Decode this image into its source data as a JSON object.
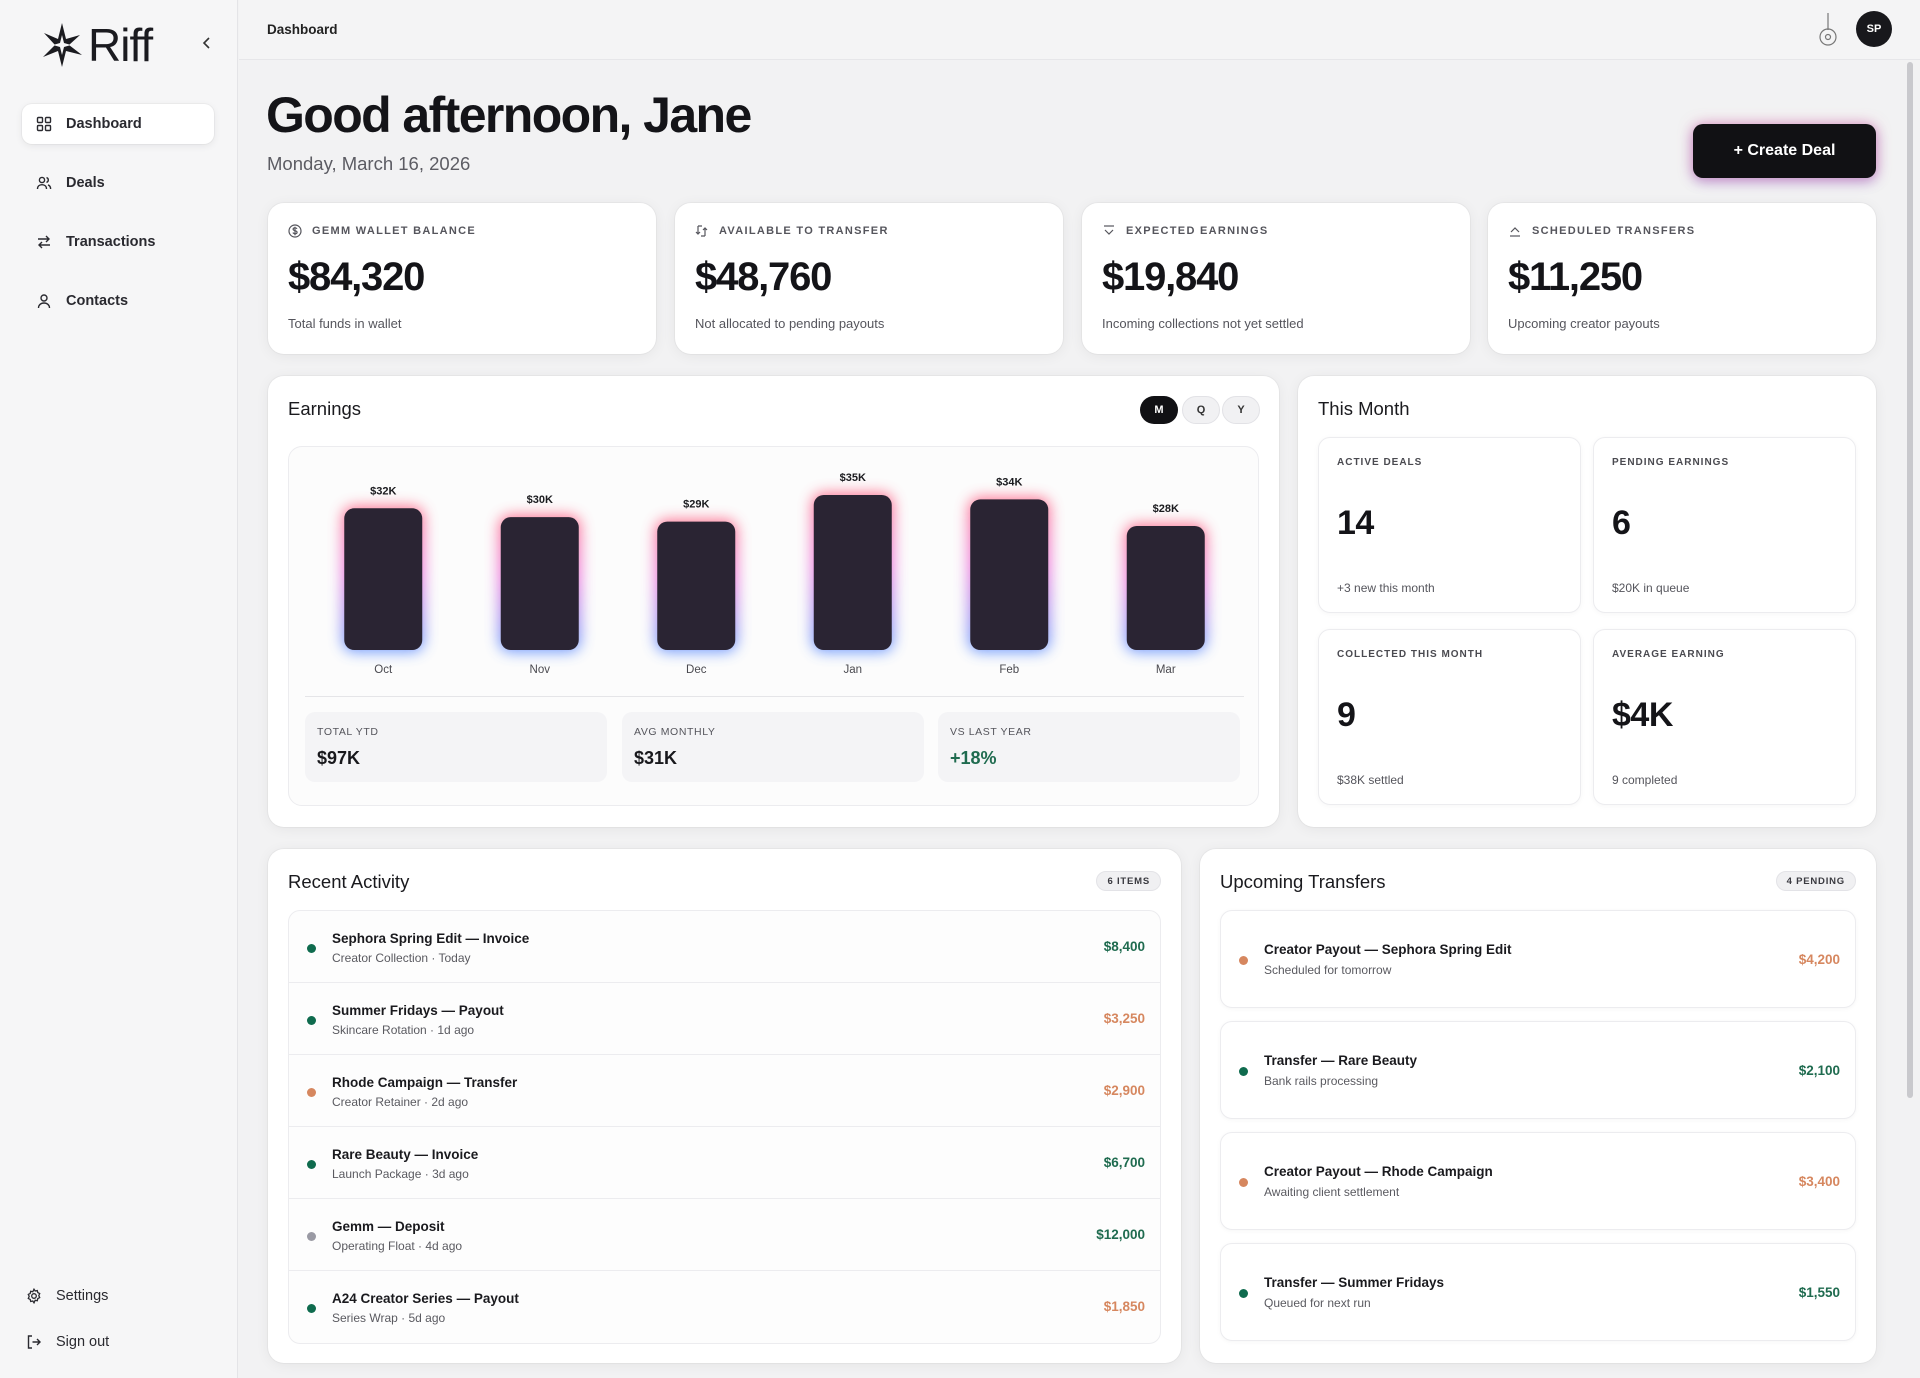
{
  "sidebar": {
    "logo_text": "Riff",
    "items": [
      {
        "label": "Dashboard",
        "icon": "grid-icon"
      },
      {
        "label": "Deals",
        "icon": "users-icon"
      },
      {
        "label": "Transactions",
        "icon": "arrows-icon"
      },
      {
        "label": "Contacts",
        "icon": "user-icon"
      }
    ],
    "settings_label": "Settings",
    "signout_label": "Sign out"
  },
  "topbar": {
    "breadcrumb": "Dashboard",
    "avatar_initials": "SP"
  },
  "header": {
    "greeting": "Good afternoon, Jane",
    "date": "Monday, March 16, 2026",
    "create_label": "+ Create Deal"
  },
  "stats": [
    {
      "label": "GEMM WALLET BALANCE",
      "value": "$84,320",
      "sub": "Total funds in wallet",
      "icon": "dollar-icon"
    },
    {
      "label": "AVAILABLE TO TRANSFER",
      "value": "$48,760",
      "sub": "Not allocated to pending payouts",
      "icon": "transfer-icon"
    },
    {
      "label": "EXPECTED EARNINGS",
      "value": "$19,840",
      "sub": "Incoming collections not yet settled",
      "icon": "chevron-down-icon"
    },
    {
      "label": "SCHEDULED TRANSFERS",
      "value": "$11,250",
      "sub": "Upcoming creator payouts",
      "icon": "chevron-up-icon"
    }
  ],
  "earnings": {
    "title": "Earnings",
    "periods": [
      "M",
      "Q",
      "Y"
    ],
    "active_period": "M",
    "summary": [
      {
        "label": "TOTAL YTD",
        "value": "$97K"
      },
      {
        "label": "AVG MONTHLY",
        "value": "$31K"
      },
      {
        "label": "VS LAST YEAR",
        "value": "+18%"
      }
    ]
  },
  "chart_data": {
    "type": "bar",
    "categories": [
      "Oct",
      "Nov",
      "Dec",
      "Jan",
      "Feb",
      "Mar"
    ],
    "values": [
      32,
      30,
      29,
      35,
      34,
      28
    ],
    "value_labels": [
      "$32K",
      "$30K",
      "$29K",
      "$35K",
      "$34K",
      "$28K"
    ],
    "title": "",
    "xlabel": "",
    "ylabel": "",
    "ylim": [
      0,
      35
    ],
    "grid": false,
    "bar_color": "#2a2433"
  },
  "this_month": {
    "title": "This Month",
    "cells": [
      {
        "label": "ACTIVE DEALS",
        "value": "14",
        "sub": "+3 new this month"
      },
      {
        "label": "PENDING EARNINGS",
        "value": "6",
        "sub": "$20K in queue"
      },
      {
        "label": "COLLECTED THIS MONTH",
        "value": "9",
        "sub": "$38K settled"
      },
      {
        "label": "AVERAGE EARNING",
        "value": "$4K",
        "sub": "9 completed"
      }
    ]
  },
  "activity": {
    "title": "Recent Activity",
    "badge": "6 ITEMS",
    "rows": [
      {
        "title": "Sephora Spring Edit — Invoice",
        "sub": "Creator Collection · Today",
        "amount": "$8,400",
        "status": "green"
      },
      {
        "title": "Summer Fridays — Payout",
        "sub": "Skincare Rotation · 1d ago",
        "amount": "$3,250",
        "status": "green",
        "amount_color": "orange"
      },
      {
        "title": "Rhode Campaign — Transfer",
        "sub": "Creator Retainer · 2d ago",
        "amount": "$2,900",
        "status": "orange"
      },
      {
        "title": "Rare Beauty — Invoice",
        "sub": "Launch Package · 3d ago",
        "amount": "$6,700",
        "status": "green"
      },
      {
        "title": "Gemm — Deposit",
        "sub": "Operating Float · 4d ago",
        "amount": "$12,000",
        "status": "gray",
        "amount_color": "green"
      },
      {
        "title": "A24 Creator Series — Payout",
        "sub": "Series Wrap · 5d ago",
        "amount": "$1,850",
        "status": "green",
        "amount_color": "orange"
      }
    ]
  },
  "transfers": {
    "title": "Upcoming Transfers",
    "badge": "4 PENDING",
    "rows": [
      {
        "title": "Creator Payout — Sephora Spring Edit",
        "sub": "Scheduled for tomorrow",
        "amount": "$4,200",
        "status": "orange"
      },
      {
        "title": "Transfer — Rare Beauty",
        "sub": "Bank rails processing",
        "amount": "$2,100",
        "status": "green"
      },
      {
        "title": "Creator Payout — Rhode Campaign",
        "sub": "Awaiting client settlement",
        "amount": "$3,400",
        "status": "orange"
      },
      {
        "title": "Transfer — Summer Fridays",
        "sub": "Queued for next run",
        "amount": "$1,550",
        "status": "green"
      }
    ]
  },
  "colors": {
    "green": "#0f6b4e",
    "orange": "#d6875f",
    "gray": "#9a9aa4",
    "amount_green": "#1f6b4f",
    "amount_orange": "#d6875f"
  }
}
